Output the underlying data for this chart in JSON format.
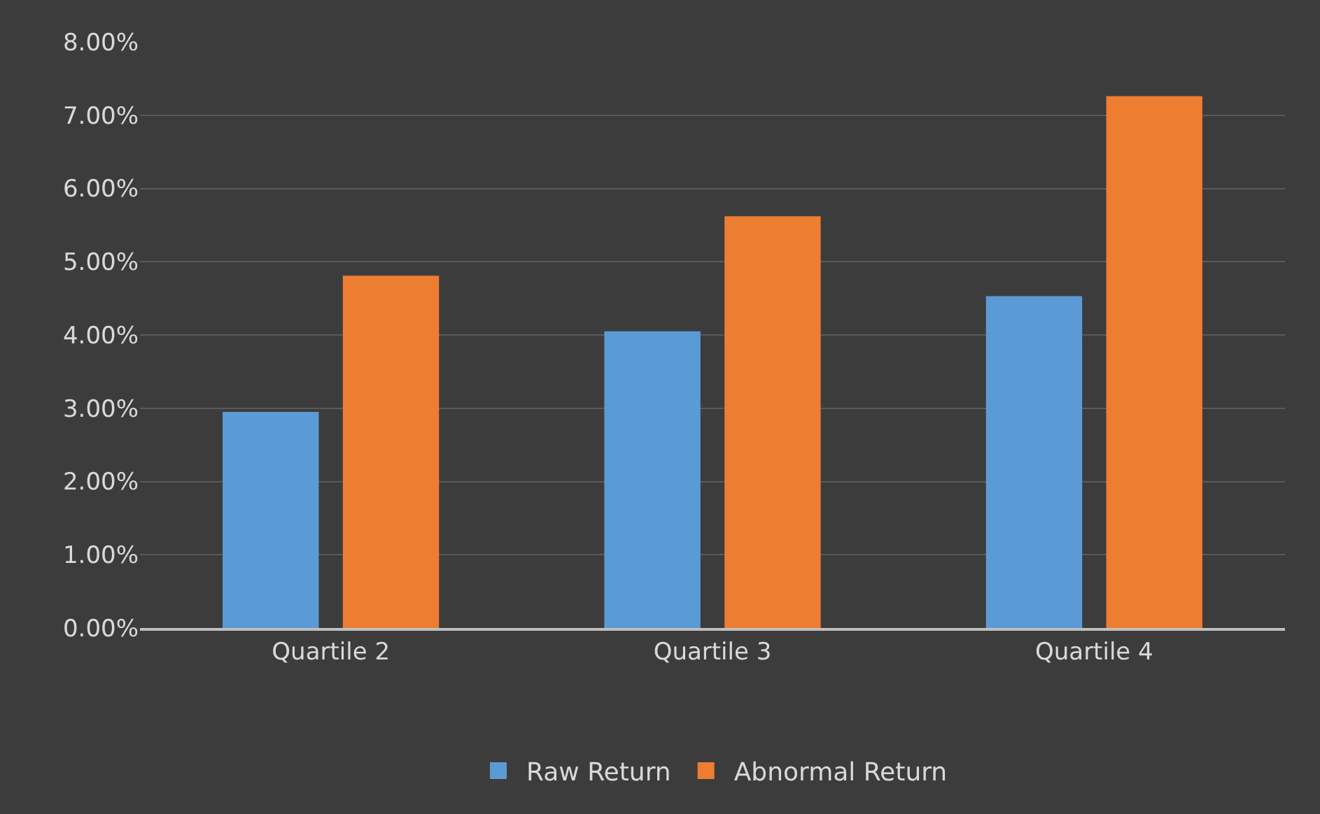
{
  "chart_data": {
    "type": "bar",
    "categories": [
      "Quartile 2",
      "Quartile 3",
      "Quartile 4"
    ],
    "series": [
      {
        "name": "Raw Return",
        "color": "#5b9bd5",
        "values": [
          2.95,
          4.05,
          4.53
        ]
      },
      {
        "name": "Abnormal Return",
        "color": "#ed7d31",
        "values": [
          4.81,
          5.62,
          7.26
        ]
      }
    ],
    "ylim": [
      0,
      8
    ],
    "yticks": [
      {
        "value": 0,
        "label": "0.00%"
      },
      {
        "value": 1,
        "label": "1.00%"
      },
      {
        "value": 2,
        "label": "2.00%"
      },
      {
        "value": 3,
        "label": "3.00%"
      },
      {
        "value": 4,
        "label": "4.00%"
      },
      {
        "value": 5,
        "label": "5.00%"
      },
      {
        "value": 6,
        "label": "6.00%"
      },
      {
        "value": 7,
        "label": "7.00%"
      },
      {
        "value": 8,
        "label": "8.00%"
      }
    ],
    "grid": "y",
    "legend": "bottom"
  }
}
